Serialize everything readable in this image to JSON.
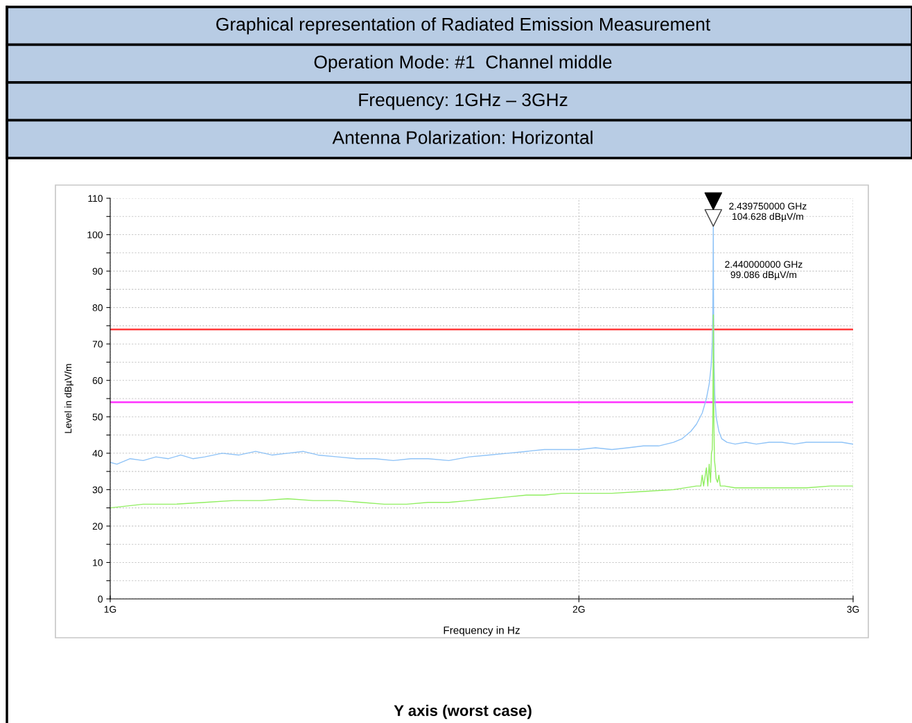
{
  "chart_data": {
    "type": "line",
    "title": "Graphical representation of Radiated Emission Measurement",
    "subtitle": "Operation Mode: #1  Channel middle",
    "xlabel": "Frequency in Hz",
    "ylabel": "Level in dBµV/m",
    "annotations": [
      "Frequency: 1GHz – 3GHz",
      "Antenna Polarization: Horizontal",
      "Y axis (worst case)",
      {
        "text": "2.439750000 GHz\n104.628 dBµV/m",
        "x": 2.43975,
        "y": 104.6
      },
      "2.440000000 GHz\n99.086 dBµV/m"
    ],
    "log": "x",
    "xlim": [
      1,
      3
    ],
    "xticks": [
      {
        "value": 1,
        "label": "1G"
      },
      {
        "value": 2,
        "label": "2G"
      },
      {
        "value": 3,
        "label": "3G"
      }
    ],
    "ylim": [
      0,
      110
    ],
    "yticks": [
      0,
      {
        "value": 5,
        "label": null
      },
      10,
      {
        "value": 15,
        "label": null
      },
      20,
      {
        "value": 25,
        "label": null
      },
      30,
      {
        "value": 35,
        "label": null
      },
      40,
      {
        "value": 45,
        "label": null
      },
      50,
      {
        "value": 55,
        "label": null
      },
      60,
      {
        "value": 65,
        "label": null
      },
      70,
      {
        "value": 75,
        "label": null
      },
      80,
      {
        "value": 85,
        "label": null
      },
      90,
      {
        "value": 95,
        "label": null
      },
      100,
      {
        "value": 105,
        "label": null
      },
      110
    ],
    "grid": true,
    "marker": "none",
    "line_style": "solid",
    "ref_lines": [
      {
        "axis": "y",
        "value": 74,
        "color": "#ff3b3b"
      },
      {
        "axis": "y",
        "value": 54,
        "color": "#ff33ff"
      }
    ],
    "series": [
      {
        "color": "#8fc3f7",
        "x": [
          1,
          1.01,
          1.03,
          1.05,
          1.07,
          1.09,
          1.11,
          1.13,
          1.15,
          1.18,
          1.21,
          1.24,
          1.27,
          1.3,
          1.33,
          1.36,
          1.4,
          1.44,
          1.48,
          1.52,
          1.56,
          1.6,
          1.65,
          1.7,
          1.75,
          1.8,
          1.85,
          1.9,
          1.95,
          2,
          2.05,
          2.1,
          2.15,
          2.2,
          2.25,
          2.3,
          2.33,
          2.36,
          2.38,
          2.4,
          2.415,
          2.425,
          2.432,
          2.436,
          2.438,
          2.439,
          2.43975,
          2.4405,
          2.442,
          2.445,
          2.45,
          2.46,
          2.47,
          2.49,
          2.52,
          2.56,
          2.6,
          2.65,
          2.7,
          2.75,
          2.8,
          2.85,
          2.9,
          2.95,
          3
        ],
        "values": [
          37.5,
          37,
          38.5,
          38,
          39,
          38.5,
          39.5,
          38.5,
          39,
          40,
          39.5,
          40.5,
          39.5,
          40,
          40.5,
          39.5,
          39,
          38.5,
          38.5,
          38,
          38.5,
          38.5,
          38,
          39,
          39.5,
          40,
          40.5,
          41,
          41,
          41,
          41.5,
          41,
          41.5,
          42,
          42,
          43,
          44,
          46,
          48,
          51,
          55,
          59,
          64,
          70,
          79,
          90,
          104.6,
          85,
          66,
          56,
          50,
          46,
          44,
          43,
          42.5,
          43,
          42.5,
          43,
          43,
          42.5,
          43,
          43,
          43,
          43,
          42.5
        ]
      },
      {
        "color": "#90ee60",
        "x": [
          1,
          1.05,
          1.1,
          1.15,
          1.2,
          1.25,
          1.3,
          1.35,
          1.4,
          1.45,
          1.5,
          1.55,
          1.6,
          1.65,
          1.7,
          1.75,
          1.8,
          1.85,
          1.9,
          1.95,
          2,
          2.1,
          2.2,
          2.3,
          2.38,
          2.395,
          2.4,
          2.405,
          2.415,
          2.42,
          2.425,
          2.43,
          2.433,
          2.436,
          2.438,
          2.44,
          2.442,
          2.444,
          2.447,
          2.45,
          2.455,
          2.46,
          2.465,
          2.48,
          2.52,
          2.6,
          2.7,
          2.8,
          2.9,
          3
        ],
        "values": [
          25,
          26,
          26,
          26.5,
          27,
          27,
          27.5,
          27,
          27,
          26.5,
          26,
          26,
          26.5,
          26.5,
          27,
          27.5,
          28,
          28.5,
          28.5,
          29,
          29,
          29,
          29.5,
          30,
          31,
          31,
          34,
          31,
          36,
          31,
          37,
          32,
          40,
          41,
          49,
          78,
          48,
          38,
          36,
          33,
          32,
          34,
          31,
          31,
          30.5,
          30.5,
          30.5,
          30.5,
          31,
          31
        ]
      }
    ]
  }
}
